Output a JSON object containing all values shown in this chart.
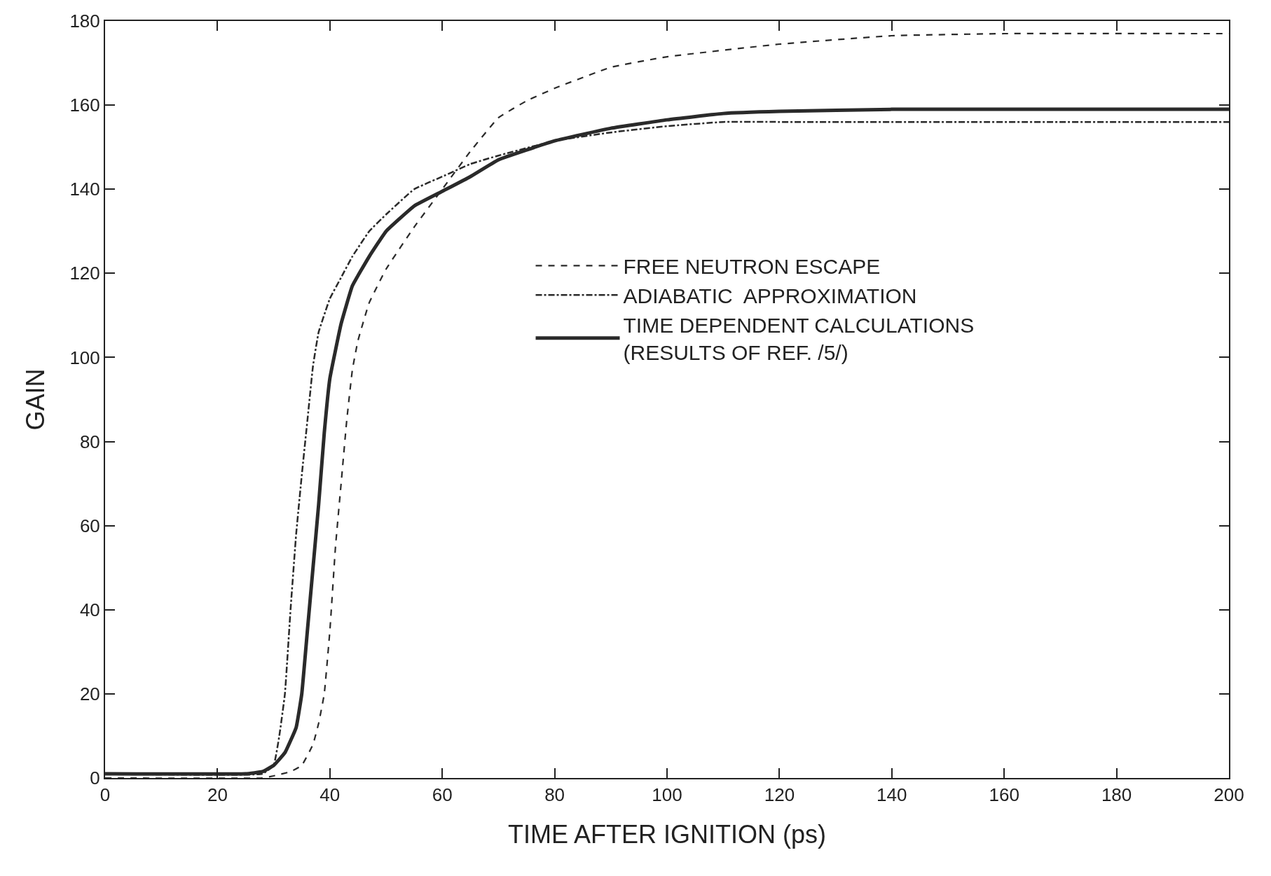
{
  "chart_data": {
    "type": "line",
    "xlabel": "TIME AFTER IGNITION (ps)",
    "ylabel": "GAIN",
    "xlim": [
      0,
      200
    ],
    "xticks": [
      0,
      20,
      40,
      60,
      80,
      100,
      120,
      140,
      160,
      180,
      200
    ],
    "ylim": [
      0,
      180
    ],
    "yticks": [
      0,
      20,
      40,
      60,
      80,
      100,
      120,
      140,
      160,
      180
    ],
    "legend": "right",
    "marker": "none",
    "series": [
      {
        "name": "FREE NEUTRON ESCAPE",
        "color": "#2a2a2a",
        "line_style": "dashed",
        "x": [
          0,
          28,
          30,
          33,
          35,
          37,
          38,
          39,
          40,
          41,
          42,
          43,
          44,
          45,
          47,
          50,
          55,
          60,
          65,
          70,
          75,
          80,
          90,
          100,
          120,
          140,
          160,
          200
        ],
        "values": [
          0,
          0,
          0.5,
          1.5,
          3,
          8,
          13,
          20,
          35,
          55,
          70,
          85,
          97,
          104,
          113,
          121,
          131,
          140,
          149,
          157,
          161,
          164,
          169,
          171.5,
          174.5,
          176.5,
          177,
          177
        ]
      },
      {
        "name": "ADIABATIC  APPROXIMATION",
        "color": "#2a2a2a",
        "line_style": "dashdot",
        "x": [
          0,
          28,
          30,
          31,
          32,
          33,
          34,
          35,
          36,
          37,
          38,
          40,
          42,
          44,
          47,
          50,
          55,
          60,
          65,
          70,
          80,
          90,
          100,
          110,
          120,
          200
        ],
        "values": [
          1,
          1,
          3,
          10,
          20,
          40,
          58,
          72,
          85,
          98,
          106,
          114,
          119,
          124,
          130,
          134,
          140,
          143,
          146,
          148,
          151.5,
          153.5,
          155,
          156,
          156,
          156
        ]
      },
      {
        "name": "TIME DEPENDENT CALCULATIONS\n(RESULTS OF REF. /5/)",
        "color": "#2a2a2a",
        "line_style": "solid",
        "x": [
          0,
          25,
          28,
          30,
          32,
          34,
          35,
          36,
          37,
          38,
          39,
          40,
          42,
          44,
          47,
          50,
          55,
          60,
          65,
          70,
          80,
          90,
          100,
          110,
          120,
          140,
          200
        ],
        "values": [
          1,
          1,
          1.5,
          3,
          6,
          12,
          20,
          35,
          50,
          65,
          82,
          95,
          108,
          117,
          124,
          130,
          136,
          139.5,
          143,
          147,
          151.5,
          154.5,
          156.5,
          158,
          158.5,
          159,
          159
        ]
      }
    ]
  }
}
